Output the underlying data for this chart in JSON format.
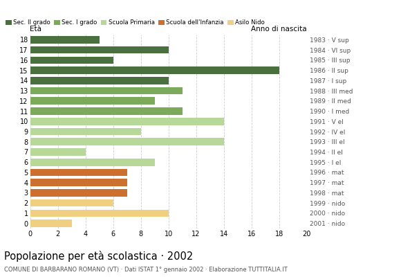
{
  "ages": [
    18,
    17,
    16,
    15,
    14,
    13,
    12,
    11,
    10,
    9,
    8,
    7,
    6,
    5,
    4,
    3,
    2,
    1,
    0
  ],
  "values": [
    5,
    10,
    6,
    18,
    10,
    11,
    9,
    11,
    14,
    8,
    14,
    4,
    9,
    7,
    7,
    7,
    6,
    10,
    3
  ],
  "colors": [
    "#4a7040",
    "#4a7040",
    "#4a7040",
    "#4a7040",
    "#4a7040",
    "#7aaa5a",
    "#7aaa5a",
    "#7aaa5a",
    "#b8d89a",
    "#b8d89a",
    "#b8d89a",
    "#b8d89a",
    "#b8d89a",
    "#cc7030",
    "#cc7030",
    "#cc7030",
    "#f0d080",
    "#f0d080",
    "#f0d080"
  ],
  "anno_nascita": [
    "1983 · V sup",
    "1984 · VI sup",
    "1985 · III sup",
    "1986 · II sup",
    "1987 · I sup",
    "1988 · III med",
    "1989 · II med",
    "1990 · I med",
    "1991 · V el",
    "1992 · IV el",
    "1993 · III el",
    "1994 · II el",
    "1995 · I el",
    "1996 · mat",
    "1997 · mat",
    "1998 · mat",
    "1999 · nido",
    "2000 · nido",
    "2001 · nido"
  ],
  "legend_labels": [
    "Sec. II grado",
    "Sec. I grado",
    "Scuola Primaria",
    "Scuola dell'Infanzia",
    "Asilo Nido"
  ],
  "legend_colors": [
    "#4a7040",
    "#7aaa5a",
    "#b8d89a",
    "#cc7030",
    "#f0d080"
  ],
  "title": "Popolazione per età scolastica · 2002",
  "subtitle": "COMUNE DI BARBARANO ROMANO (VT) · Dati ISTAT 1° gennaio 2002 · Elaborazione TUTTITALIA.IT",
  "xlabel_left": "Età",
  "xlabel_right": "Anno di nascita",
  "xlim": [
    0,
    20
  ],
  "xticks": [
    0,
    2,
    4,
    6,
    8,
    10,
    12,
    14,
    16,
    18,
    20
  ],
  "background_color": "#ffffff",
  "grid_color": "#cccccc",
  "bar_height": 0.72
}
